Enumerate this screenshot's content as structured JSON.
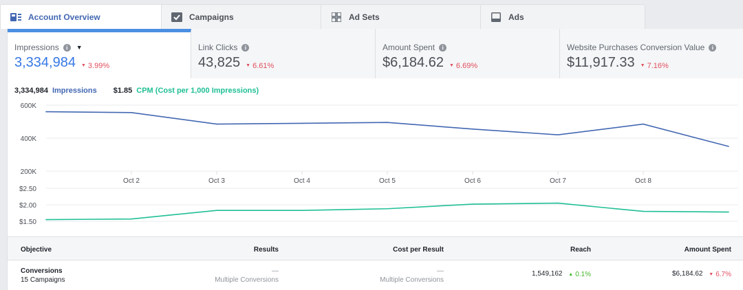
{
  "tabs": [
    {
      "label": "Account Overview",
      "icon": "account-overview-icon"
    },
    {
      "label": "Campaigns",
      "icon": "campaigns-icon"
    },
    {
      "label": "Ad Sets",
      "icon": "ad-sets-icon"
    },
    {
      "label": "Ads",
      "icon": "ads-icon"
    }
  ],
  "metrics": [
    {
      "label": "Impressions",
      "value": "3,334,984",
      "delta": "3.99%"
    },
    {
      "label": "Link Clicks",
      "value": "43,825",
      "delta": "6.61%"
    },
    {
      "label": "Amount Spent",
      "value": "$6,184.62",
      "delta": "6.69%"
    },
    {
      "label": "Website Purchases Conversion Value",
      "value": "$11,917.33",
      "delta": "7.16%"
    }
  ],
  "legend": {
    "impressions_value": "3,334,984",
    "impressions_label": "Impressions",
    "cpm_value": "$1.85",
    "cpm_label": "CPM (Cost per 1,000 Impressions)"
  },
  "colors": {
    "impressions": "#4267b2",
    "cpm": "#1fbf95",
    "active_tab": "#4a90e2",
    "negative": "#e04f5f",
    "positive": "#42b72a"
  },
  "chart_data": [
    {
      "type": "line",
      "x": [
        "Oct 1",
        "Oct 2",
        "Oct 3",
        "Oct 4",
        "Oct 5",
        "Oct 6",
        "Oct 7",
        "Oct 8",
        "Oct 9"
      ],
      "tick_labels": [
        "Oct 2",
        "Oct 3",
        "Oct 4",
        "Oct 5",
        "Oct 6",
        "Oct 7",
        "Oct 8"
      ],
      "series": [
        {
          "name": "Impressions",
          "values": [
            560000,
            555000,
            485000,
            490000,
            495000,
            455000,
            420000,
            485000,
            350000
          ]
        }
      ],
      "yticks": [
        "600K",
        "400K",
        "200K"
      ],
      "ylim": [
        200000,
        620000
      ],
      "grid": true
    },
    {
      "type": "line",
      "x": [
        "Oct 1",
        "Oct 2",
        "Oct 3",
        "Oct 4",
        "Oct 5",
        "Oct 6",
        "Oct 7",
        "Oct 8",
        "Oct 9"
      ],
      "series": [
        {
          "name": "CPM (Cost per 1,000 Impressions)",
          "values": [
            1.55,
            1.57,
            1.83,
            1.83,
            1.88,
            2.02,
            2.05,
            1.8,
            1.78
          ]
        }
      ],
      "yticks": [
        "$2.50",
        "$2.00",
        "$1.50"
      ],
      "ylim": [
        1.4,
        2.55
      ],
      "grid": true
    }
  ],
  "table": {
    "headers": [
      "Objective",
      "Results",
      "Cost per Result",
      "Reach",
      "Amount Spent"
    ],
    "row": {
      "objective": "Conversions",
      "objective_sub": "15 Campaigns",
      "results": "—",
      "results_sub": "Multiple Conversions",
      "cost": "—",
      "cost_sub": "Multiple Conversions",
      "reach": "1,549,162",
      "reach_delta": "0.1%",
      "spent": "$6,184.62",
      "spent_delta": "6.7%"
    }
  }
}
